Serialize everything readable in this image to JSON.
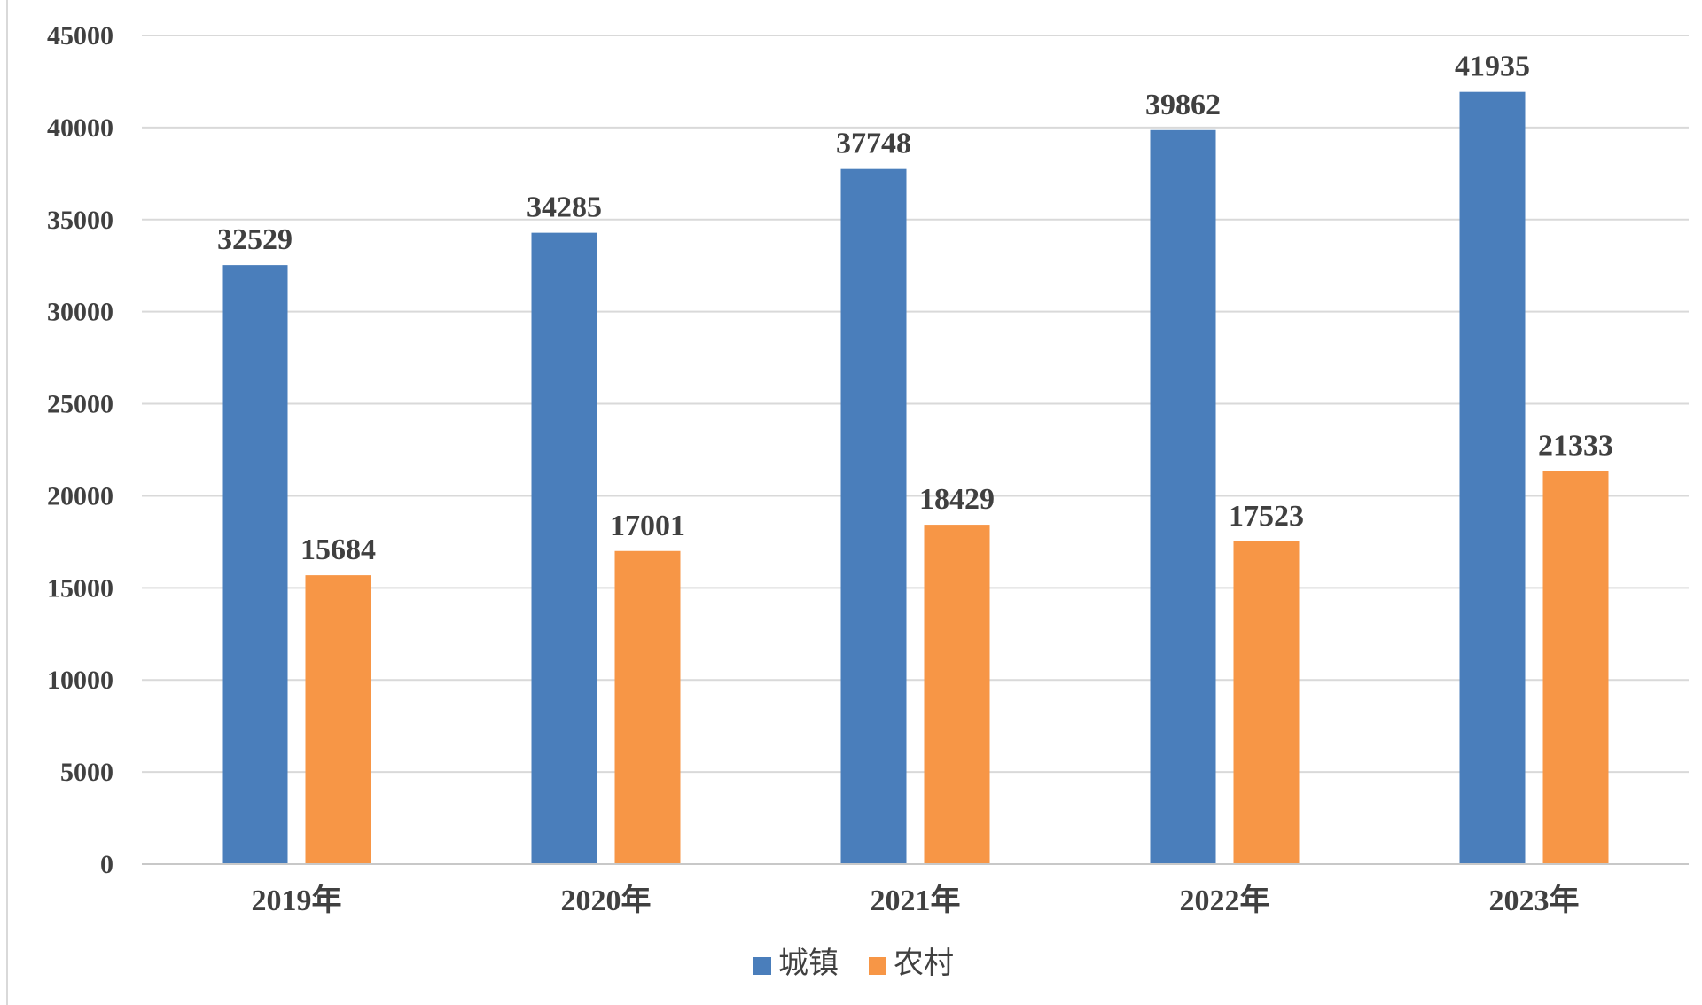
{
  "chart_data": {
    "type": "bar",
    "categories": [
      "2019年",
      "2020年",
      "2021年",
      "2022年",
      "2023年"
    ],
    "series": [
      {
        "name": "城镇",
        "values": [
          32529,
          34285,
          37748,
          39862,
          41935
        ],
        "color": "#4a7ebb"
      },
      {
        "name": "农村",
        "values": [
          15684,
          17001,
          18429,
          17523,
          21333
        ],
        "color": "#f79646"
      }
    ],
    "title": "",
    "xlabel": "",
    "ylabel": "",
    "ylim": [
      0,
      45000
    ],
    "yticks": [
      0,
      5000,
      10000,
      15000,
      20000,
      25000,
      30000,
      35000,
      40000,
      45000
    ],
    "grid": true,
    "legend": "bottom"
  }
}
